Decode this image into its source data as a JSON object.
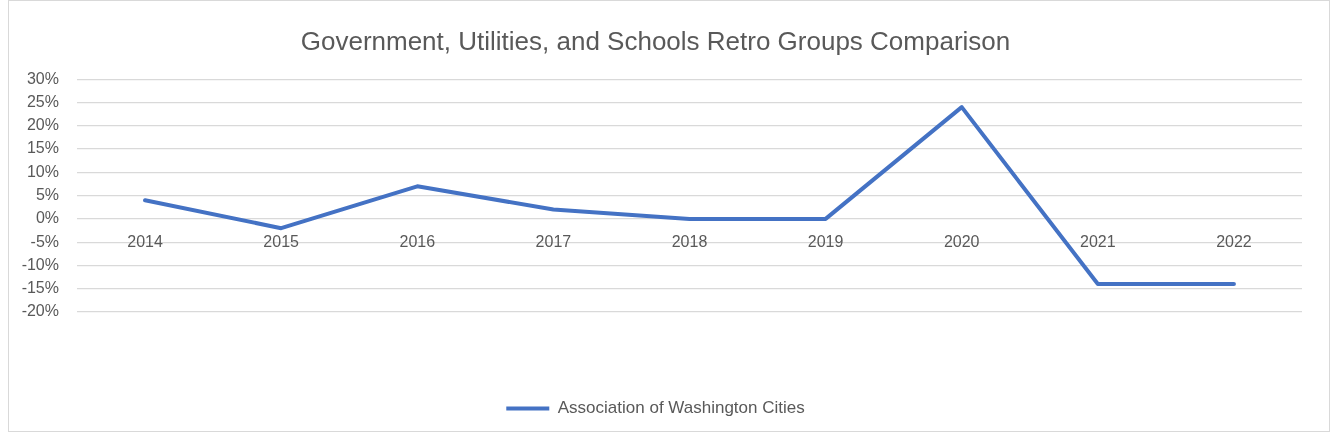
{
  "chart_data": {
    "type": "line",
    "title": "Government, Utilities, and Schools Retro Groups Comparison",
    "categories": [
      "2014",
      "2015",
      "2016",
      "2017",
      "2018",
      "2019",
      "2020",
      "2021",
      "2022"
    ],
    "series": [
      {
        "name": "Association of Washington Cities",
        "color": "#4472c4",
        "values": [
          4,
          -2,
          7,
          2,
          0,
          0,
          24,
          -14,
          -14
        ]
      }
    ],
    "ylim": [
      -20,
      30
    ],
    "yticks": [
      {
        "value": -20,
        "label": "-20%"
      },
      {
        "value": -15,
        "label": "-15%"
      },
      {
        "value": -10,
        "label": "-10%"
      },
      {
        "value": -5,
        "label": "-5%"
      },
      {
        "value": 0,
        "label": "0%"
      },
      {
        "value": 5,
        "label": "5%"
      },
      {
        "value": 10,
        "label": "10%"
      },
      {
        "value": 15,
        "label": "15%"
      },
      {
        "value": 20,
        "label": "20%"
      },
      {
        "value": 25,
        "label": "25%"
      },
      {
        "value": 30,
        "label": "30%"
      }
    ],
    "grid": "y",
    "legend": "bottom",
    "marker": "none",
    "line_style": "solid"
  }
}
